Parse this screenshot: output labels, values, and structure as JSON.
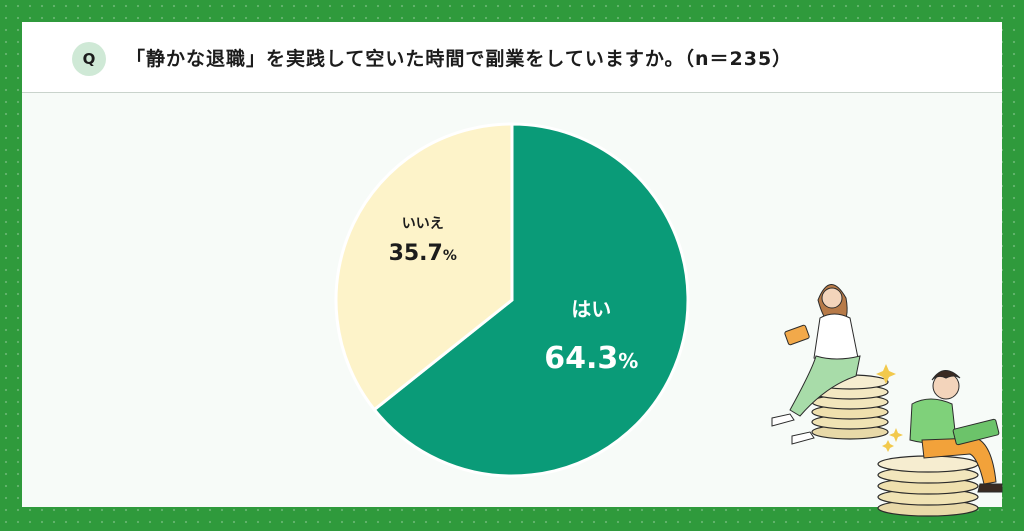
{
  "header": {
    "badge": "Q",
    "question": "「静かな退職」を実践して空いた時間で副業をしていますか。（n＝235）"
  },
  "chart_data": {
    "type": "pie",
    "title": "「静かな退職」を実践して空いた時間で副業をしていますか。（n＝235）",
    "slices": [
      {
        "label": "はい",
        "value": 64.3,
        "display": "64.3",
        "unit": "%",
        "color": "#0a9b78",
        "text_color": "#ffffff"
      },
      {
        "label": "いいえ",
        "value": 35.7,
        "display": "35.7",
        "unit": "%",
        "color": "#fdf3c9",
        "text_color": "#1c1c1c"
      }
    ],
    "start_angle_deg": 0,
    "direction": "clockwise"
  },
  "colors": {
    "frame": "#2f9a3c",
    "card": "#f7fbf8",
    "badge": "#cfe9d6"
  },
  "illustration": {
    "name": "people-sitting-on-coins",
    "icons": [
      "woman-with-tablet",
      "man-with-laptop",
      "coin-stack",
      "sparkle"
    ]
  }
}
